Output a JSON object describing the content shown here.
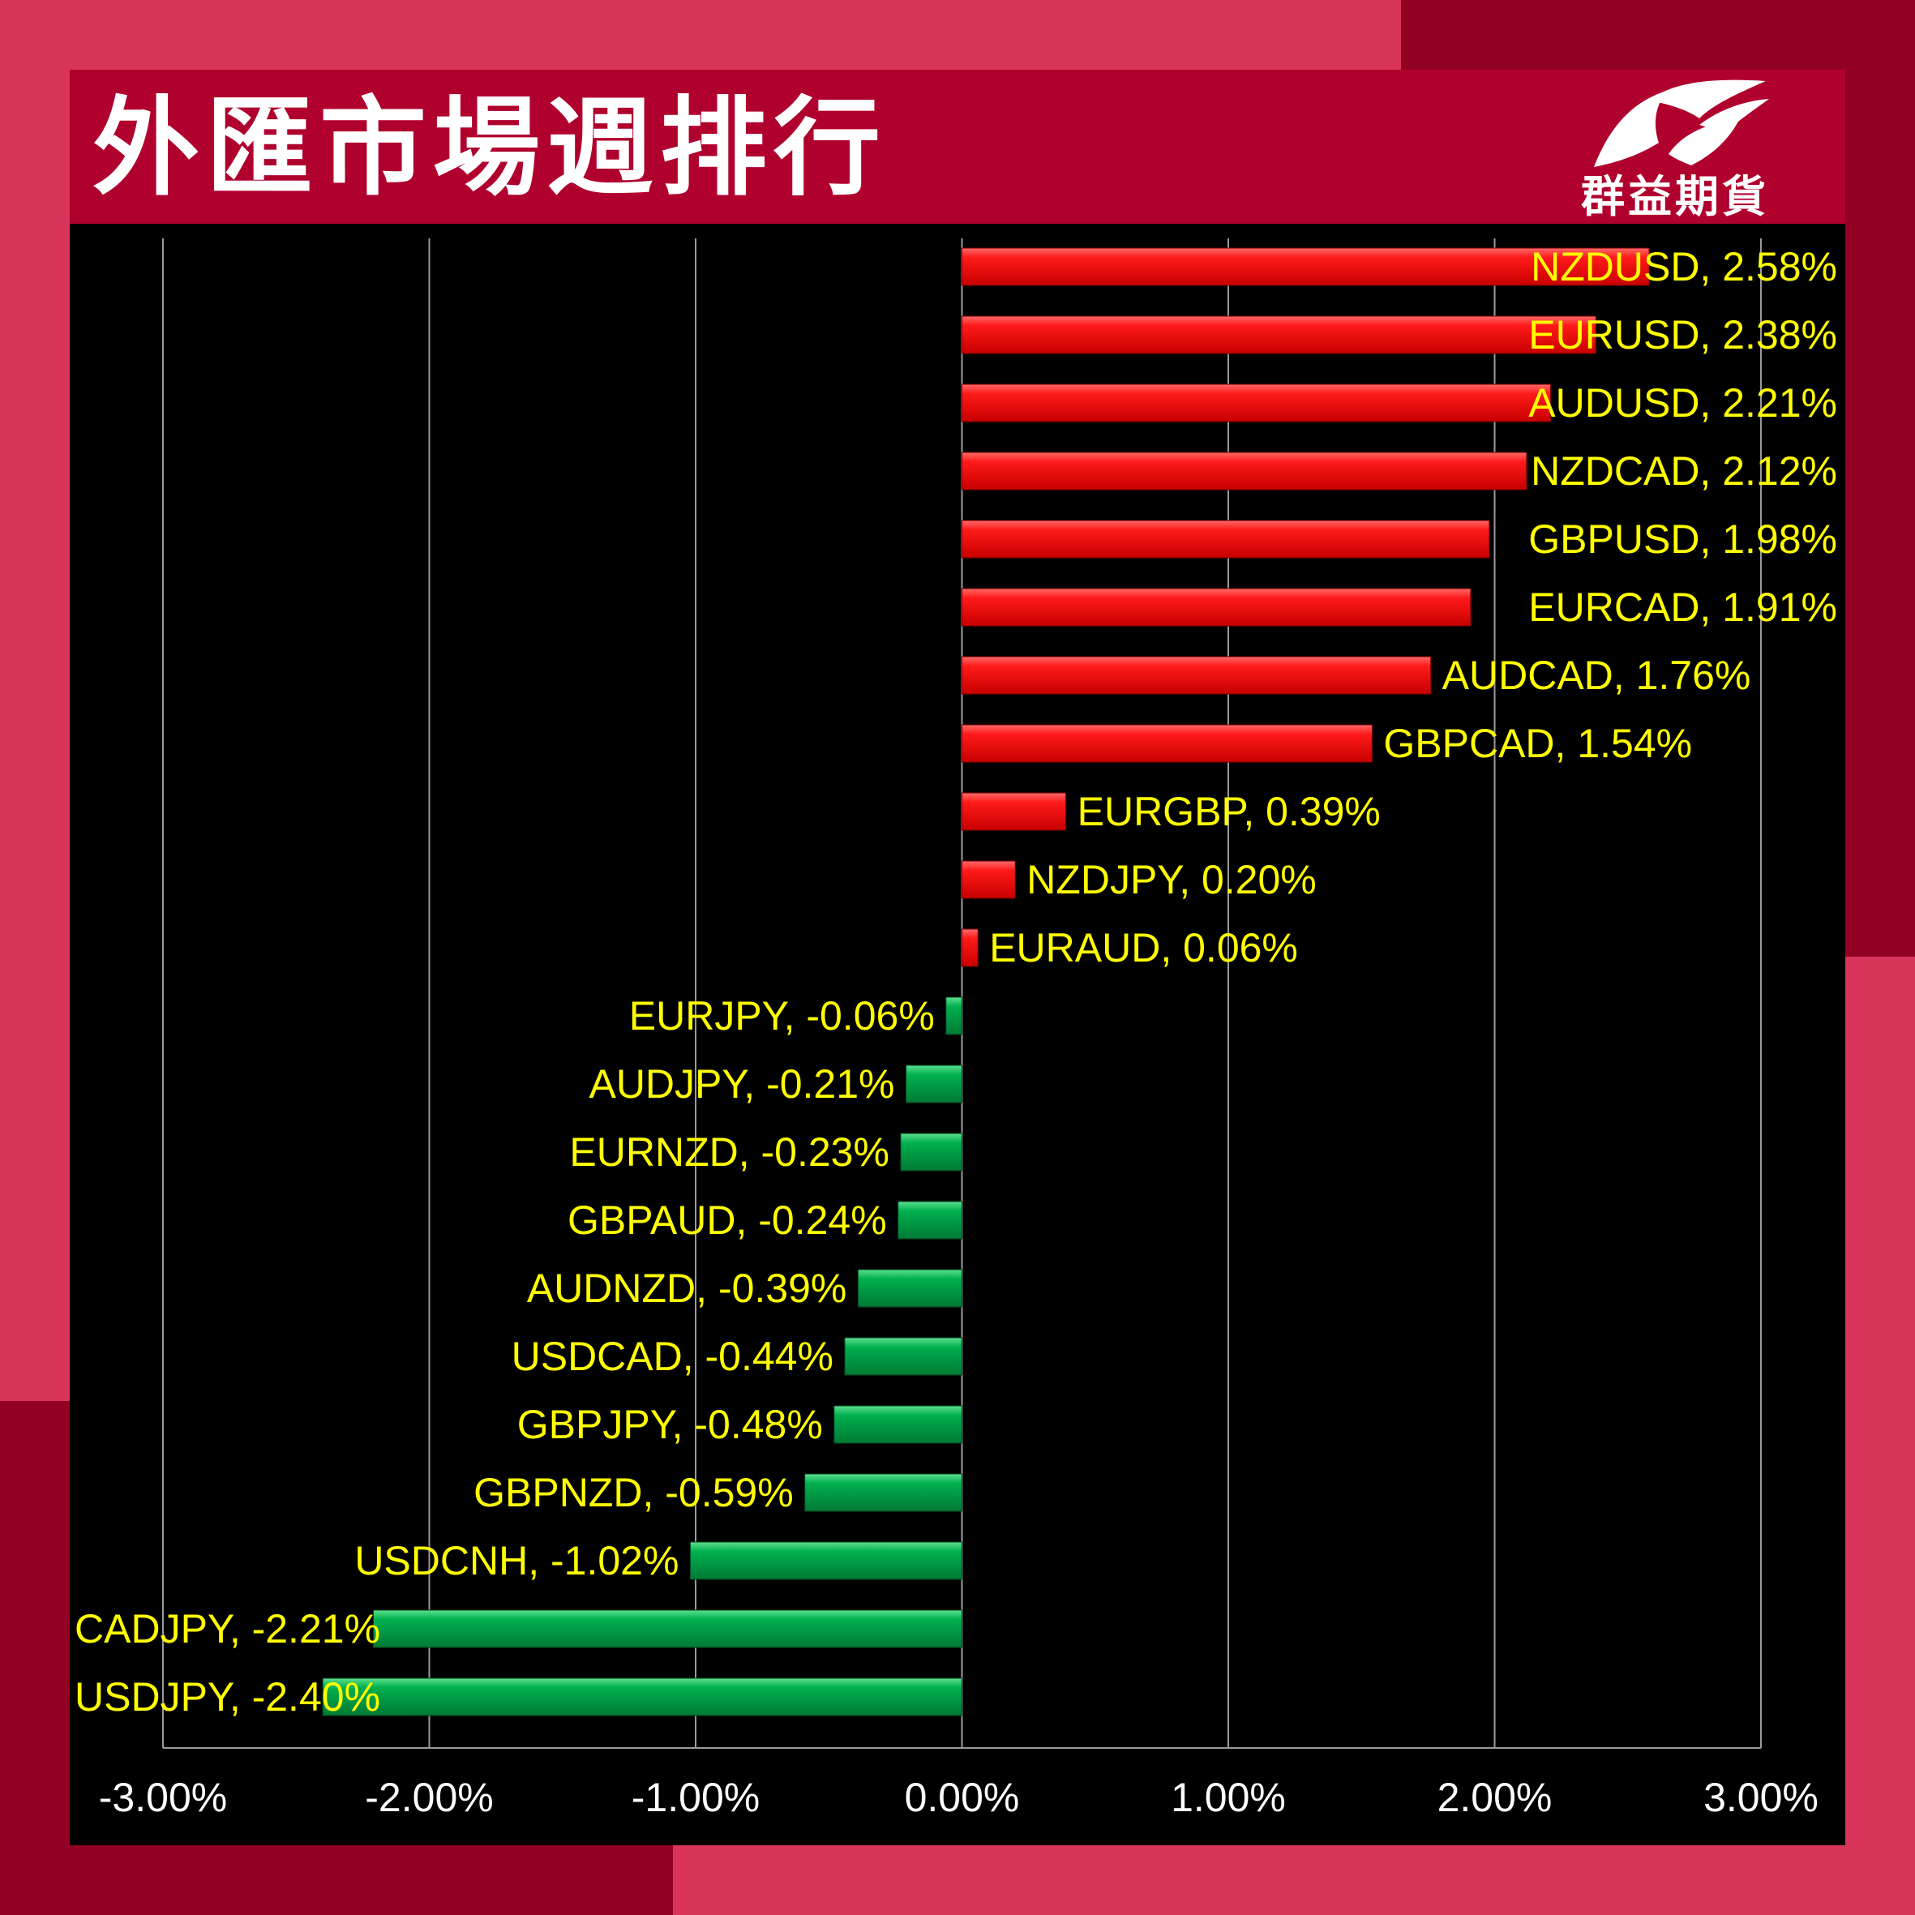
{
  "header": {
    "title": "外匯市場週排行",
    "logo_text": "群益期貨"
  },
  "colors": {
    "positive": "#ff1a1a",
    "negative": "#00b04e",
    "label": "#ffff00",
    "axis_text": "#ffffff",
    "gridline": "#9a9a9a"
  },
  "chart_data": {
    "type": "bar",
    "orientation": "horizontal",
    "title": "外匯市場週排行",
    "xlabel": "",
    "ylabel": "",
    "xlim": [
      -3.0,
      3.0
    ],
    "x_ticks": [
      -3,
      -2,
      -1,
      0,
      1,
      2,
      3
    ],
    "x_tick_labels": [
      "-3.00%",
      "-2.00%",
      "-1.00%",
      "0.00%",
      "1.00%",
      "2.00%",
      "3.00%"
    ],
    "grid": "vertical",
    "legend": "none",
    "categories": [
      "NZDUSD",
      "EURUSD",
      "AUDUSD",
      "NZDCAD",
      "GBPUSD",
      "EURCAD",
      "AUDCAD",
      "GBPCAD",
      "EURGBP",
      "NZDJPY",
      "EURAUD",
      "EURJPY",
      "AUDJPY",
      "EURNZD",
      "GBPAUD",
      "AUDNZD",
      "USDCAD",
      "GBPJPY",
      "GBPNZD",
      "USDCNH",
      "CADJPY",
      "USDJPY"
    ],
    "values": [
      2.58,
      2.38,
      2.21,
      2.12,
      1.98,
      1.91,
      1.76,
      1.54,
      0.39,
      0.2,
      0.06,
      -0.06,
      -0.21,
      -0.23,
      -0.24,
      -0.39,
      -0.44,
      -0.48,
      -0.59,
      -1.02,
      -2.21,
      -2.4
    ],
    "data_labels": [
      "NZDUSD, 2.58%",
      "EURUSD, 2.38%",
      "AUDUSD, 2.21%",
      "NZDCAD, 2.12%",
      "GBPUSD, 1.98%",
      "EURCAD, 1.91%",
      "AUDCAD, 1.76%",
      "GBPCAD, 1.54%",
      "EURGBP, 0.39%",
      "NZDJPY, 0.20%",
      "EURAUD, 0.06%",
      "EURJPY, -0.06%",
      "AUDJPY, -0.21%",
      "EURNZD, -0.23%",
      "GBPAUD, -0.24%",
      "AUDNZD, -0.39%",
      "USDCAD, -0.44%",
      "GBPJPY, -0.48%",
      "GBPNZD, -0.59%",
      "USDCNH, -1.02%",
      "CADJPY, -2.21%",
      "USDJPY, -2.40%"
    ]
  }
}
